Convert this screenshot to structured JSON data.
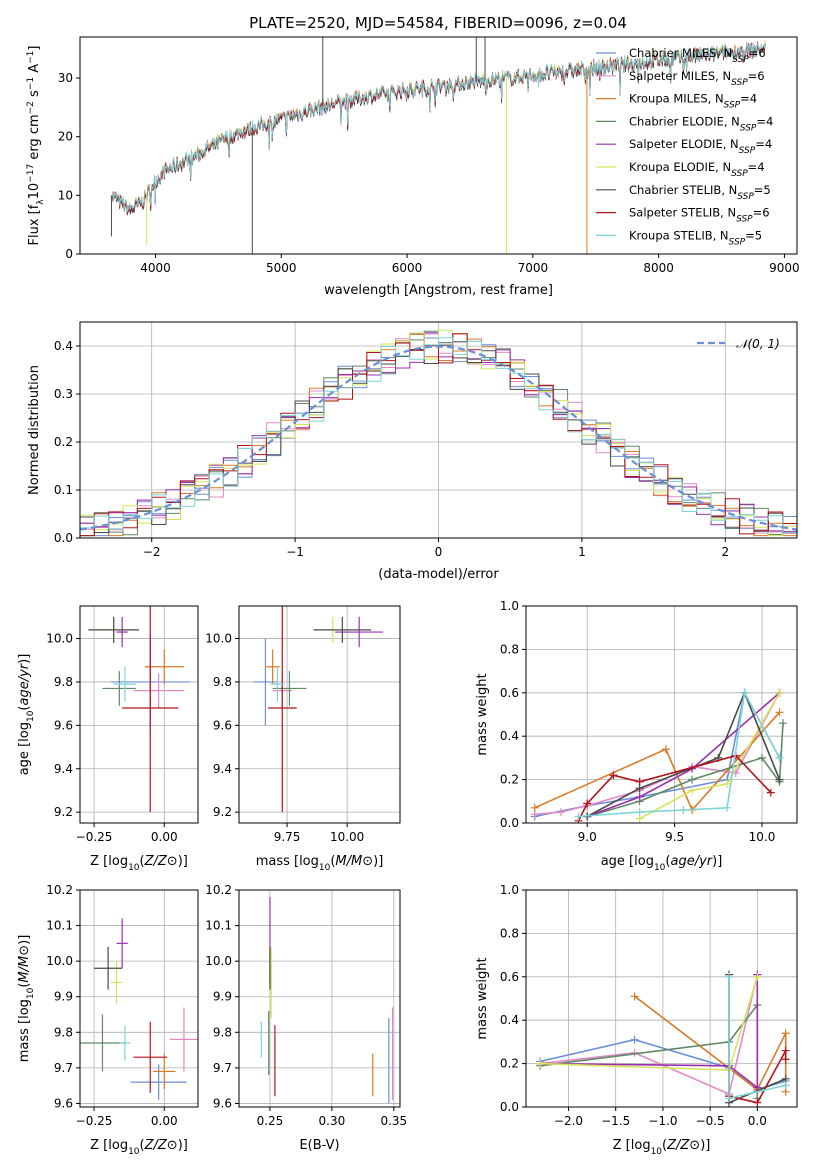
{
  "figure": {
    "title": "PLATE=2520, MJD=54584, FIBERID=0096, z=0.04"
  },
  "colors": {
    "Chabrier MILES": "#6a8fd8",
    "Salpeter MILES": "#e389c6",
    "Kroupa MILES": "#d97a27",
    "Chabrier ELODIE": "#5f8a65",
    "Salpeter ELODIE": "#9b2fae",
    "Kroupa ELODIE": "#d6e35a",
    "Chabrier STELIB": "#4a4a4a",
    "Salpeter STELIB": "#b3131b",
    "Kroupa STELIB": "#7fd4d6"
  },
  "chart_data": [
    {
      "id": "spectrum",
      "type": "line",
      "xlabel": "wavelength [Angstrom, rest frame]",
      "ylabel": "Flux [f_λ 10^-17 erg cm^-2 s^-1 A^-1]",
      "xlim": [
        3400,
        9100
      ],
      "ylim": [
        0,
        37
      ],
      "xticks": [
        4000,
        5000,
        6000,
        7000,
        8000,
        9000
      ],
      "yticks": [
        0,
        10,
        20,
        30
      ],
      "grid": false,
      "legend_position": "top-right",
      "legend": [
        "Chabrier MILES, N_SSP=6",
        "Salpeter MILES, N_SSP=6",
        "Kroupa MILES, N_SSP=4",
        "Chabrier ELODIE, N_SSP=4",
        "Salpeter ELODIE, N_SSP=4",
        "Kroupa ELODIE, N_SSP=4",
        "Chabrier STELIB, N_SSP=5",
        "Salpeter STELIB, N_SSP=6",
        "Kroupa STELIB, N_SSP=5"
      ],
      "continuum": {
        "x": [
          3650,
          3800,
          3900,
          4000,
          4100,
          4300,
          4500,
          4700,
          5000,
          5300,
          5600,
          6000,
          6400,
          6800,
          7000,
          7400,
          7800,
          8200,
          8600,
          8850
        ],
        "y": [
          10,
          7.5,
          9,
          12.5,
          14.5,
          16.5,
          19,
          21,
          23,
          25,
          26.5,
          28,
          29,
          30,
          30.5,
          31.5,
          32.5,
          33.5,
          34.5,
          35
        ]
      },
      "features": [
        {
          "x": 3650,
          "y": 3,
          "color": "#4a4a4a"
        },
        {
          "x": 3930,
          "y": 1.5,
          "color": "#d6e35a"
        },
        {
          "x": 4770,
          "y": 0,
          "color": "#4a4a4a"
        },
        {
          "x": 5330,
          "y": 37,
          "color": "#4a4a4a"
        },
        {
          "x": 6550,
          "y": 37,
          "color": "#4a4a4a"
        },
        {
          "x": 6620,
          "y": 37,
          "color": "#4a4a4a"
        },
        {
          "x": 6790,
          "y": 0,
          "color": "#d6e35a"
        },
        {
          "x": 7430,
          "y": 0,
          "color": "#d97a27"
        }
      ]
    },
    {
      "id": "residuals",
      "type": "histogram",
      "xlabel": "(data-model)/error",
      "ylabel": "Normed distribution",
      "xlim": [
        -2.5,
        2.5
      ],
      "ylim": [
        0,
        0.45
      ],
      "xticks": [
        -2,
        -1,
        0,
        1,
        2
      ],
      "yticks": [
        0.0,
        0.1,
        0.2,
        0.3,
        0.4
      ],
      "grid": true,
      "legend_position": "top-right",
      "reference_curve": {
        "name": "𝒩(0, 1)",
        "style": "dashed",
        "color": "#6a8fd8"
      },
      "bin_width": 0.1,
      "bin_start": -2.5
    },
    {
      "id": "z-age",
      "type": "errorbar",
      "xlabel": "Z [log10(Z/Z⊙)]",
      "ylabel": "age [log10(age/yr)]",
      "xlim": [
        -0.3,
        0.12
      ],
      "ylim": [
        9.15,
        10.15
      ],
      "xticks": [
        -0.25,
        0.0
      ],
      "xticklabels": [
        "−0.25",
        "0.00"
      ],
      "yticks": [
        9.2,
        9.4,
        9.6,
        9.8,
        10.0
      ],
      "grid": true,
      "points": [
        {
          "model": "Chabrier MILES",
          "x": -0.05,
          "y": 9.8,
          "xerr": 0.14,
          "yerr": 0.22
        },
        {
          "model": "Salpeter MILES",
          "x": -0.02,
          "y": 9.76,
          "xerr": 0.09,
          "yerr": 0.08
        },
        {
          "model": "Kroupa MILES",
          "x": 0.0,
          "y": 9.87,
          "xerr": 0.07,
          "yerr": 0.08
        },
        {
          "model": "Chabrier ELODIE",
          "x": -0.16,
          "y": 9.77,
          "xerr": 0.06,
          "yerr": 0.08
        },
        {
          "model": "Salpeter ELODIE",
          "x": -0.15,
          "y": 10.03,
          "xerr": 0.02,
          "yerr": 0.07
        },
        {
          "model": "Kroupa ELODIE",
          "x": -0.18,
          "y": 10.04,
          "xerr": 0.06,
          "yerr": 0.06
        },
        {
          "model": "Chabrier STELIB",
          "x": -0.18,
          "y": 10.04,
          "xerr": 0.09,
          "yerr": 0.06
        },
        {
          "model": "Salpeter STELIB",
          "x": -0.05,
          "y": 9.68,
          "xerr": 0.1,
          "yerr": 0.48
        },
        {
          "model": "Kroupa STELIB",
          "x": -0.14,
          "y": 9.79,
          "xerr": 0.04,
          "yerr": 0.08
        }
      ]
    },
    {
      "id": "mass-age",
      "type": "errorbar",
      "xlabel": "mass [log10(M/M⊙)]",
      "ylabel": "",
      "xlim": [
        9.55,
        10.22
      ],
      "ylim": [
        9.15,
        10.15
      ],
      "xticks": [
        9.75,
        10.0
      ],
      "xticklabels": [
        "9.75",
        "10.00"
      ],
      "yticks": [
        9.2,
        9.4,
        9.6,
        9.8,
        10.0
      ],
      "grid": true,
      "points": [
        {
          "model": "Chabrier MILES",
          "x": 9.66,
          "y": 9.8,
          "xerr": 0.05,
          "yerr": 0.2
        },
        {
          "model": "Salpeter MILES",
          "x": 9.73,
          "y": 9.76,
          "xerr": 0.04,
          "yerr": 0.08
        },
        {
          "model": "Kroupa MILES",
          "x": 9.69,
          "y": 9.87,
          "xerr": 0.03,
          "yerr": 0.08
        },
        {
          "model": "Chabrier ELODIE",
          "x": 9.76,
          "y": 9.77,
          "xerr": 0.07,
          "yerr": 0.08
        },
        {
          "model": "Salpeter ELODIE",
          "x": 10.05,
          "y": 10.03,
          "xerr": 0.1,
          "yerr": 0.07
        },
        {
          "model": "Kroupa ELODIE",
          "x": 9.94,
          "y": 10.04,
          "xerr": 0.02,
          "yerr": 0.06
        },
        {
          "model": "Chabrier STELIB",
          "x": 9.98,
          "y": 10.04,
          "xerr": 0.12,
          "yerr": 0.06
        },
        {
          "model": "Salpeter STELIB",
          "x": 9.73,
          "y": 9.68,
          "xerr": 0.06,
          "yerr": 0.48
        },
        {
          "model": "Kroupa STELIB",
          "x": 9.71,
          "y": 9.79,
          "xerr": 0.03,
          "yerr": 0.08
        }
      ]
    },
    {
      "id": "age-weight",
      "type": "line",
      "xlabel": "age [log10(age/yr)]",
      "ylabel": "mass weight",
      "xlim": [
        8.65,
        10.2
      ],
      "ylim": [
        0,
        1.0
      ],
      "xticks": [
        9.0,
        9.5,
        10.0
      ],
      "yticks": [
        0.0,
        0.2,
        0.4,
        0.6,
        0.8,
        1.0
      ],
      "grid": true,
      "series": [
        {
          "model": "Chabrier MILES",
          "x": [
            8.7,
            9.0,
            9.3,
            9.8,
            9.9,
            10.1
          ],
          "y": [
            0.03,
            0.08,
            0.12,
            0.2,
            0.6,
            0.3
          ]
        },
        {
          "model": "Salpeter MILES",
          "x": [
            8.7,
            8.85,
            9.0,
            9.3,
            9.6,
            9.85,
            10.1
          ],
          "y": [
            0.04,
            0.05,
            0.08,
            0.15,
            0.26,
            0.23,
            0.6
          ]
        },
        {
          "model": "Kroupa MILES",
          "x": [
            8.7,
            9.45,
            9.6,
            10.1
          ],
          "y": [
            0.07,
            0.34,
            0.06,
            0.51
          ]
        },
        {
          "model": "Chabrier ELODIE",
          "x": [
            9.0,
            9.3,
            9.6,
            10.0,
            10.1,
            10.12
          ],
          "y": [
            0.03,
            0.1,
            0.2,
            0.3,
            0.19,
            0.46
          ]
        },
        {
          "model": "Salpeter ELODIE",
          "x": [
            9.0,
            9.3,
            9.6,
            10.1
          ],
          "y": [
            0.03,
            0.12,
            0.25,
            0.6
          ]
        },
        {
          "model": "Kroupa ELODIE",
          "x": [
            9.3,
            9.6,
            9.8,
            10.1
          ],
          "y": [
            0.02,
            0.15,
            0.18,
            0.6
          ]
        },
        {
          "model": "Chabrier STELIB",
          "x": [
            9.0,
            9.3,
            9.75,
            9.9,
            10.1
          ],
          "y": [
            0.03,
            0.16,
            0.3,
            0.6,
            0.2
          ]
        },
        {
          "model": "Salpeter STELIB",
          "x": [
            8.95,
            9.0,
            9.15,
            9.3,
            9.85,
            10.05
          ],
          "y": [
            0.01,
            0.09,
            0.22,
            0.19,
            0.31,
            0.14
          ]
        },
        {
          "model": "Kroupa STELIB",
          "x": [
            8.95,
            9.3,
            9.55,
            9.8,
            9.9,
            10.1
          ],
          "y": [
            0.03,
            0.05,
            0.06,
            0.07,
            0.6,
            0.3
          ]
        }
      ]
    },
    {
      "id": "z-mass",
      "type": "errorbar",
      "xlabel": "Z [log10(Z/Z⊙)]",
      "ylabel": "mass [log10(M/M⊙)]",
      "xlim": [
        -0.3,
        0.12
      ],
      "ylim": [
        9.59,
        10.2
      ],
      "xticks": [
        -0.25,
        0.0
      ],
      "xticklabels": [
        "−0.25",
        "0.00"
      ],
      "yticks": [
        9.6,
        9.7,
        9.8,
        9.9,
        10.0,
        10.1,
        10.2
      ],
      "grid": true,
      "points": [
        {
          "model": "Chabrier MILES",
          "x": -0.02,
          "y": 9.66,
          "xerr": 0.1,
          "yerr": 0.05
        },
        {
          "model": "Salpeter MILES",
          "x": 0.07,
          "y": 9.78,
          "xerr": 0.05,
          "yerr": 0.09
        },
        {
          "model": "Kroupa MILES",
          "x": 0.0,
          "y": 9.69,
          "xerr": 0.04,
          "yerr": 0.05
        },
        {
          "model": "Chabrier ELODIE",
          "x": -0.22,
          "y": 9.77,
          "xerr": 0.08,
          "yerr": 0.08
        },
        {
          "model": "Salpeter ELODIE",
          "x": -0.15,
          "y": 10.05,
          "xerr": 0.02,
          "yerr": 0.07
        },
        {
          "model": "Kroupa ELODIE",
          "x": -0.17,
          "y": 9.94,
          "xerr": 0.02,
          "yerr": 0.06
        },
        {
          "model": "Chabrier STELIB",
          "x": -0.2,
          "y": 9.98,
          "xerr": 0.05,
          "yerr": 0.06
        },
        {
          "model": "Salpeter STELIB",
          "x": -0.05,
          "y": 9.73,
          "xerr": 0.06,
          "yerr": 0.1
        },
        {
          "model": "Kroupa STELIB",
          "x": -0.14,
          "y": 9.77,
          "xerr": 0.02,
          "yerr": 0.05
        }
      ]
    },
    {
      "id": "ebv-mass",
      "type": "errorbar",
      "xlabel": "E(B-V)",
      "ylabel": "",
      "xlim": [
        0.225,
        0.355
      ],
      "ylim": [
        9.59,
        10.2
      ],
      "xticks": [
        0.25,
        0.3,
        0.35
      ],
      "xticklabels": [
        "0.25",
        "0.30",
        "0.35"
      ],
      "yticks": [
        9.6,
        9.7,
        9.8,
        9.9,
        10.0,
        10.1,
        10.2
      ],
      "grid": true,
      "points": [
        {
          "model": "Chabrier MILES",
          "x": 0.346,
          "y": 9.72,
          "xerr": 0,
          "yerr": 0.12
        },
        {
          "model": "Salpeter MILES",
          "x": 0.349,
          "y": 9.74,
          "xerr": 0,
          "yerr": 0.13
        },
        {
          "model": "Kroupa MILES",
          "x": 0.333,
          "y": 9.68,
          "xerr": 0,
          "yerr": 0.06
        },
        {
          "model": "Chabrier ELODIE",
          "x": 0.249,
          "y": 9.77,
          "xerr": 0,
          "yerr": 0.09
        },
        {
          "model": "Salpeter ELODIE",
          "x": 0.25,
          "y": 10.06,
          "xerr": 0,
          "yerr": 0.12
        },
        {
          "model": "Kroupa ELODIE",
          "x": 0.251,
          "y": 9.94,
          "xerr": 0,
          "yerr": 0.1
        },
        {
          "model": "Chabrier STELIB",
          "x": 0.25,
          "y": 9.98,
          "xerr": 0,
          "yerr": 0.06
        },
        {
          "model": "Salpeter STELIB",
          "x": 0.254,
          "y": 9.72,
          "xerr": 0,
          "yerr": 0.1
        },
        {
          "model": "Kroupa STELIB",
          "x": 0.243,
          "y": 9.78,
          "xerr": 0,
          "yerr": 0.05
        }
      ]
    },
    {
      "id": "z-weight",
      "type": "line",
      "xlabel": "Z [log10(Z/Z⊙)]",
      "ylabel": "mass weight",
      "xlim": [
        -2.45,
        0.42
      ],
      "ylim": [
        0,
        1.0
      ],
      "xticks": [
        -2.0,
        -1.5,
        -1.0,
        -0.5,
        0.0
      ],
      "xticklabels": [
        "−2.0",
        "−1.5",
        "−1.0",
        "−0.5",
        "0.0"
      ],
      "yticks": [
        0.0,
        0.2,
        0.4,
        0.6,
        0.8,
        1.0
      ],
      "grid": true,
      "series": [
        {
          "model": "Chabrier MILES",
          "x": [
            -2.3,
            -1.3,
            -0.3,
            0.0,
            0.3
          ],
          "y": [
            0.21,
            0.31,
            0.18,
            0.08,
            0.12
          ]
        },
        {
          "model": "Salpeter MILES",
          "x": [
            -2.3,
            -1.3,
            -0.3,
            0.0
          ],
          "y": [
            0.2,
            0.25,
            0.06,
            0.61
          ]
        },
        {
          "model": "Kroupa MILES",
          "x": [
            -1.3,
            0.0,
            0.3,
            0.3
          ],
          "y": [
            0.51,
            0.08,
            0.34,
            0.07
          ]
        },
        {
          "model": "Chabrier ELODIE",
          "x": [
            -2.3,
            -0.3,
            0.0,
            0.0
          ],
          "y": [
            0.19,
            0.3,
            0.47,
            0.04
          ]
        },
        {
          "model": "Salpeter ELODIE",
          "x": [
            -2.3,
            -0.3,
            0.0,
            0.0
          ],
          "y": [
            0.2,
            0.19,
            0.09,
            0.61
          ]
        },
        {
          "model": "Kroupa ELODIE",
          "x": [
            -2.3,
            -0.3,
            0.0
          ],
          "y": [
            0.2,
            0.17,
            0.6
          ]
        },
        {
          "model": "Chabrier STELIB",
          "x": [
            -0.3,
            -0.3,
            0.3
          ],
          "y": [
            0.61,
            0.02,
            0.13
          ]
        },
        {
          "model": "Salpeter STELIB",
          "x": [
            -0.3,
            0.0,
            0.3,
            0.3
          ],
          "y": [
            0.05,
            0.02,
            0.26,
            0.22
          ]
        },
        {
          "model": "Kroupa STELIB",
          "x": [
            -0.3,
            -0.3,
            0.3
          ],
          "y": [
            0.6,
            0.04,
            0.1
          ]
        }
      ]
    }
  ]
}
